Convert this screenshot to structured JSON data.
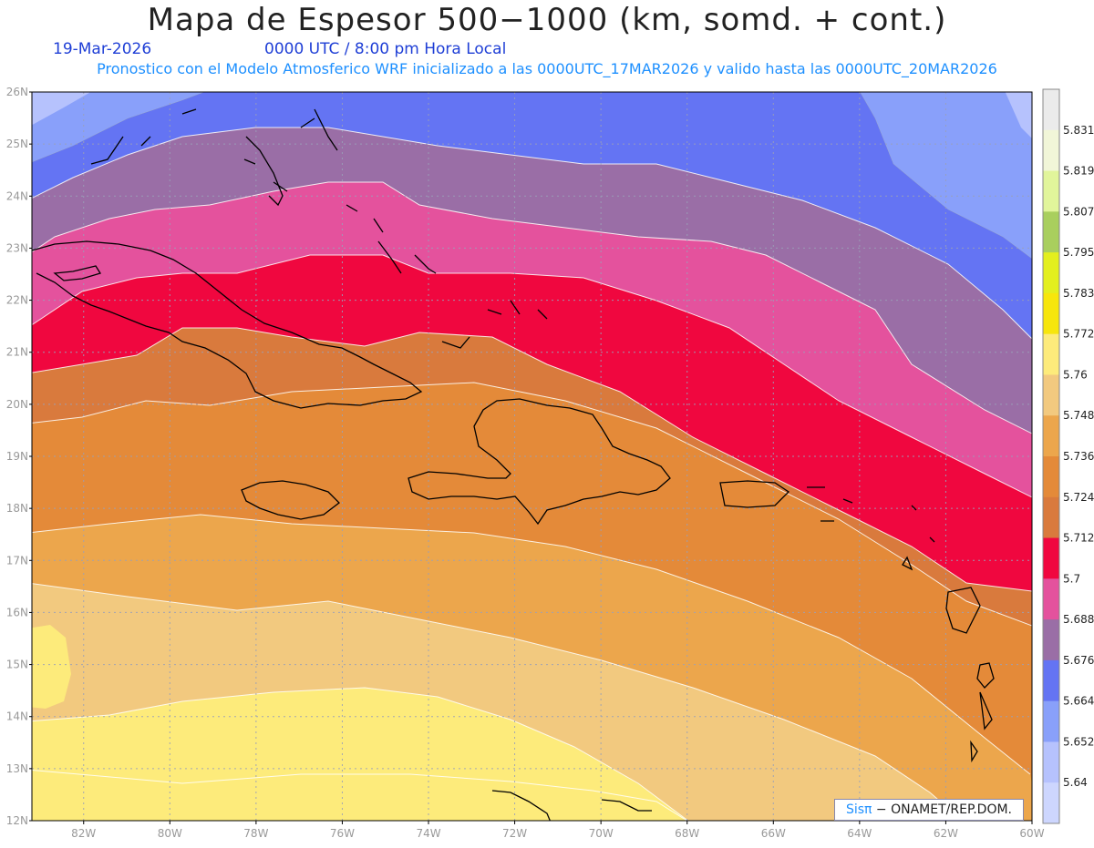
{
  "header": {
    "title": "Mapa de Espesor 500−1000 (km, somd. + cont.)",
    "date": "19-Mar-2026",
    "time": "0000 UTC / 8:00 pm Hora Local",
    "description": "Pronostico con el Modelo Atmosferico WRF inicializado a las 0000UTC_17MAR2026 y valido hasta las  0000UTC_20MAR2026"
  },
  "map": {
    "lon_labels": [
      "82W",
      "80W",
      "78W",
      "76W",
      "74W",
      "72W",
      "70W",
      "68W",
      "66W",
      "64W",
      "62W",
      "60W"
    ],
    "lat_labels": [
      "26N",
      "25N",
      "24N",
      "23N",
      "22N",
      "21N",
      "20N",
      "19N",
      "18N",
      "17N",
      "16N",
      "15N",
      "14N",
      "13N",
      "12N"
    ],
    "lon_range": [
      -83.2,
      -60
    ],
    "lat_range": [
      12,
      26
    ]
  },
  "legend": {
    "labels": [
      "5.831",
      "5.819",
      "5.807",
      "5.795",
      "5.783",
      "5.772",
      "5.76",
      "5.748",
      "5.736",
      "5.724",
      "5.712",
      "5.7",
      "5.688",
      "5.676",
      "5.664",
      "5.652",
      "5.64"
    ],
    "colors": [
      "#ebebeb",
      "#f1f6d8",
      "#e1f59b",
      "#a9cf5e",
      "#e3ef1e",
      "#f7e60c",
      "#fdeb7b",
      "#f2c97f",
      "#eca64c",
      "#e48a39",
      "#d97a3d",
      "#f0073f",
      "#e4529d",
      "#9a6ea6",
      "#6474f3",
      "#89a0fa",
      "#b6c2fd",
      "#cdd6fe"
    ]
  },
  "credit": {
    "logo": "Sisπ",
    "text": " − ONAMET/REP.DOM."
  }
}
